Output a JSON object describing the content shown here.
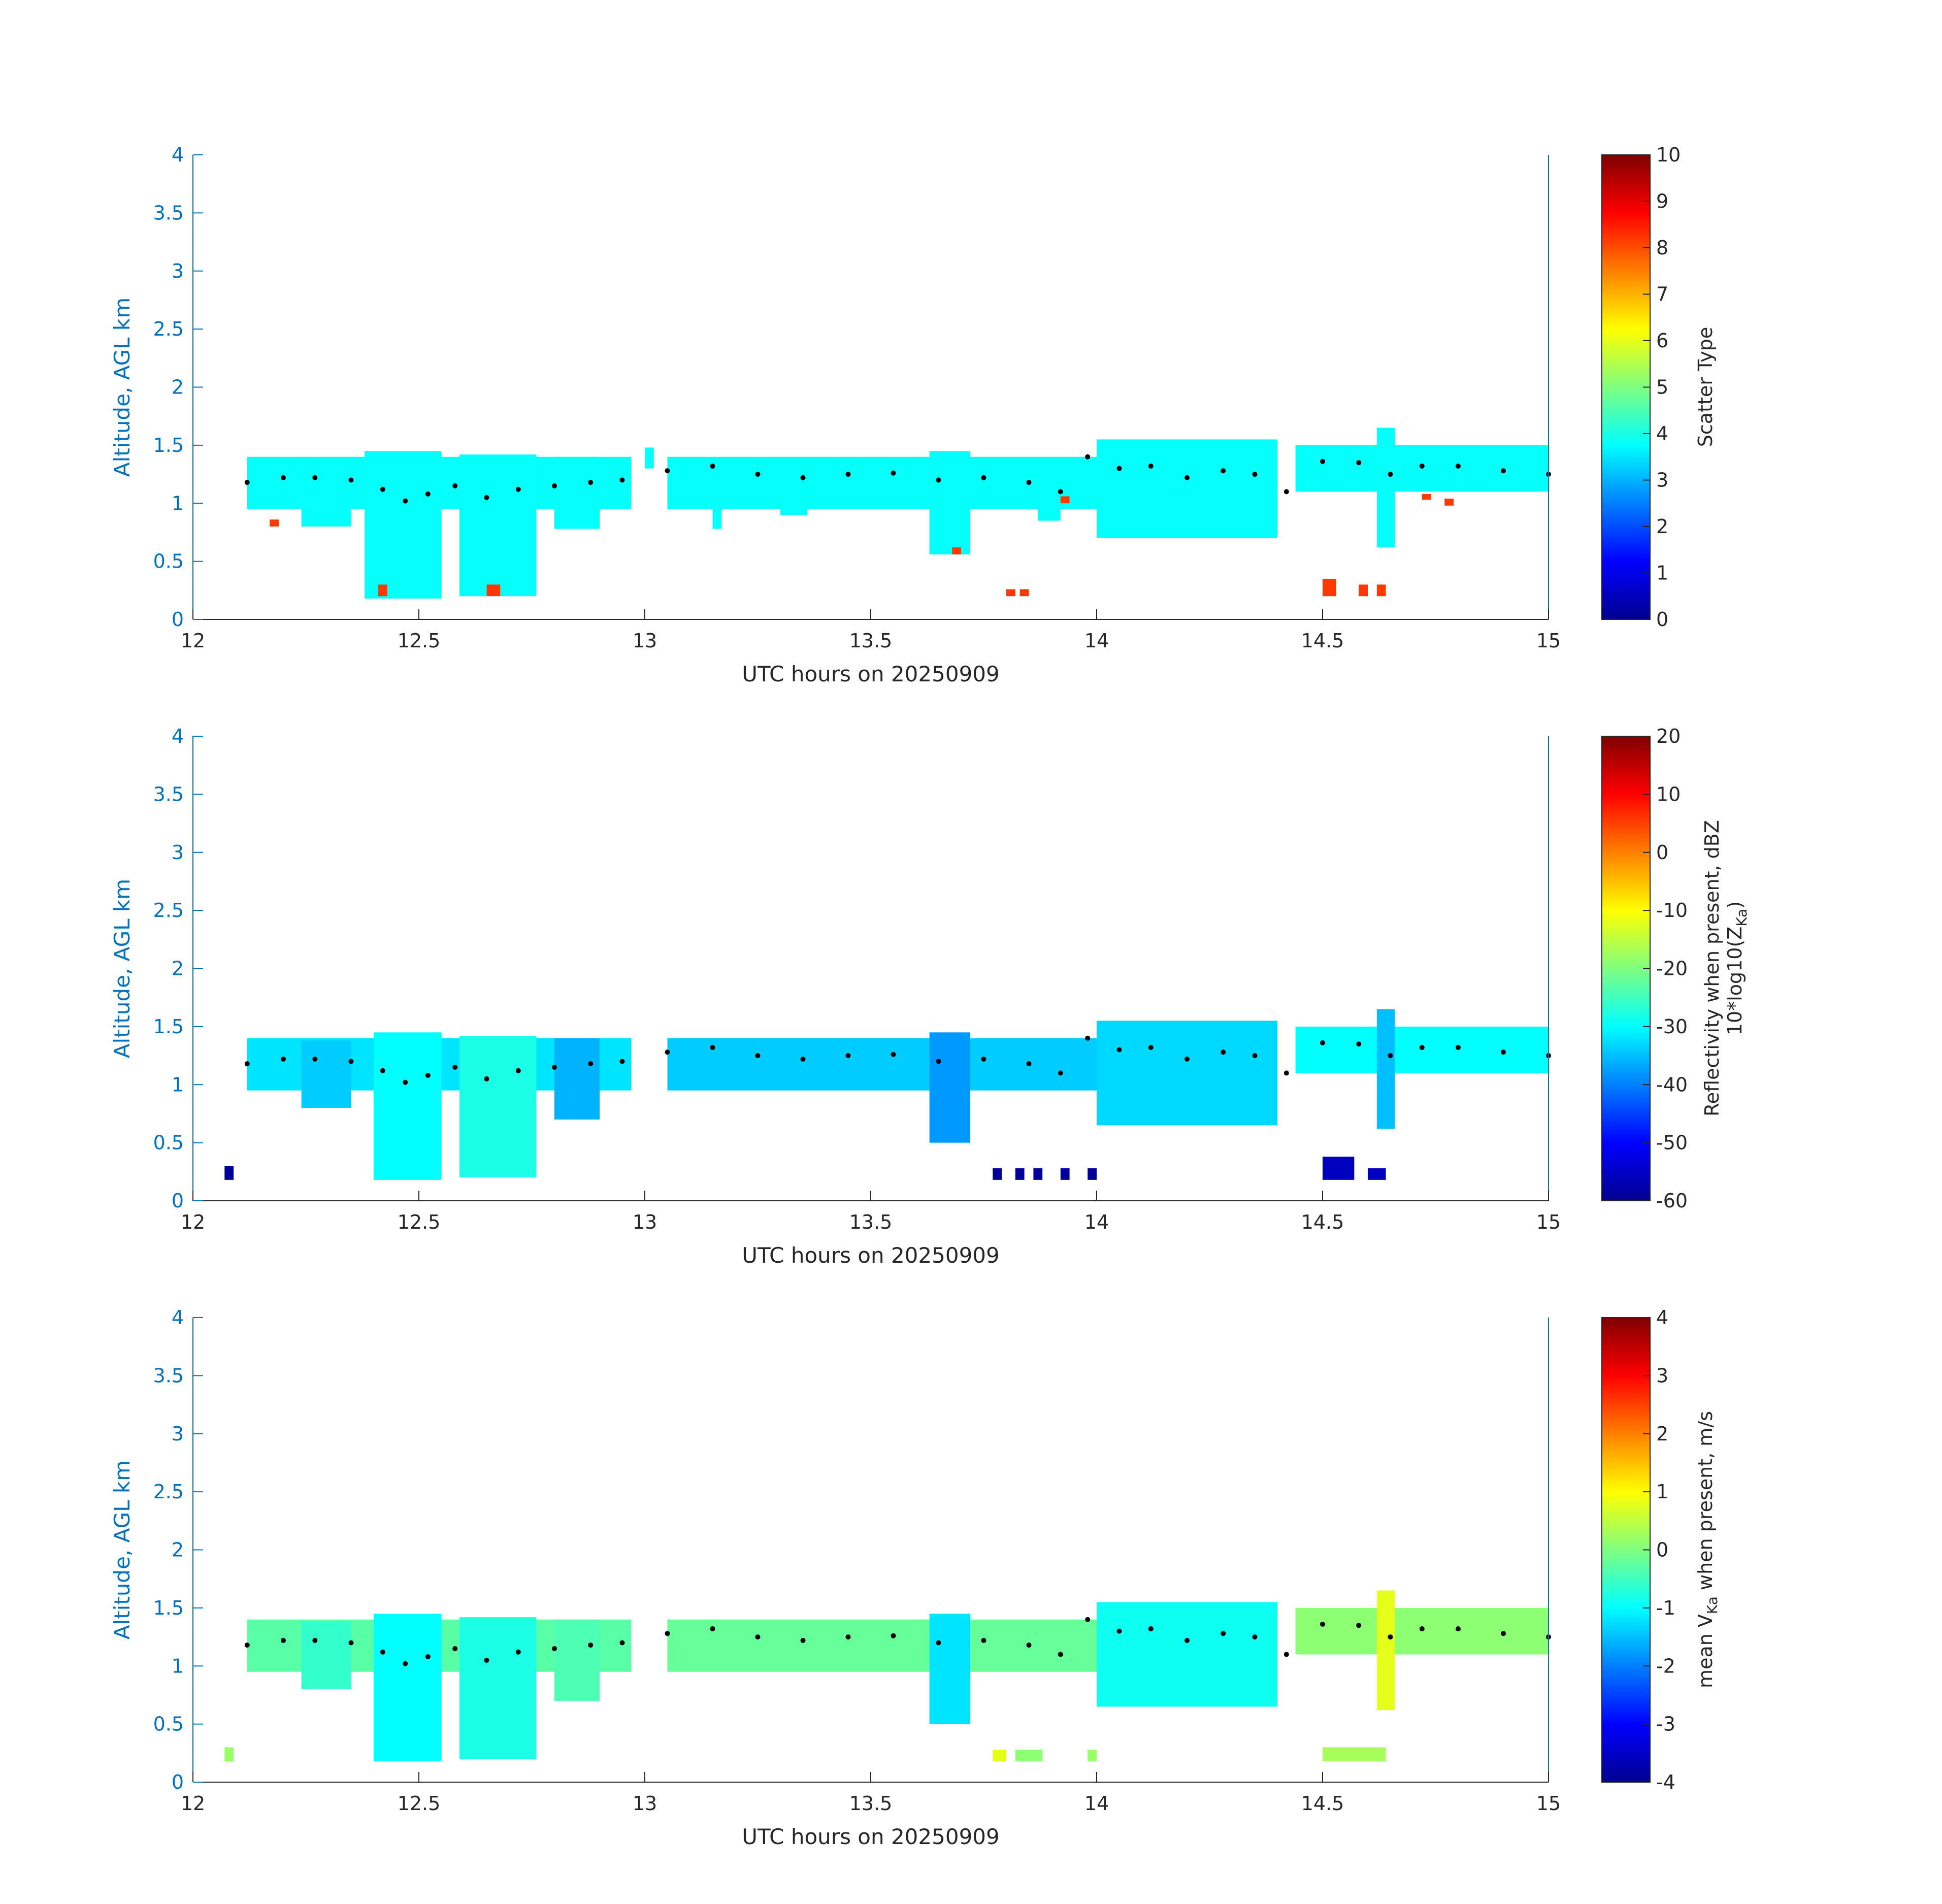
{
  "colors": {
    "axis_blue": "#0072bd",
    "axis_dark": "#262626",
    "colormap": "jet",
    "top_marker": "#000000"
  },
  "chart_data": [
    {
      "type": "heatmap",
      "title": "",
      "xlabel": "UTC hours on 20250909",
      "ylabel": "Altitude, AGL km",
      "xlim": [
        12,
        15
      ],
      "ylim": [
        0,
        4
      ],
      "xticks": [
        "12",
        "12.5",
        "13",
        "13.5",
        "14",
        "14.5",
        "15"
      ],
      "yticks": [
        "0",
        "0.5",
        "1",
        "1.5",
        "2",
        "2.5",
        "3",
        "3.5",
        "4"
      ],
      "colorbar": {
        "label": "Scatter Type",
        "label2": "",
        "clim": [
          0,
          10
        ],
        "ticks": [
          "0",
          "1",
          "2",
          "3",
          "4",
          "5",
          "6",
          "7",
          "8",
          "9",
          "10"
        ]
      },
      "cloud_top_km": "series_top",
      "cells": [
        {
          "t0": 12.12,
          "t1": 12.97,
          "zmin": 0.95,
          "zmax": 1.4,
          "v": 3.8
        },
        {
          "t0": 12.24,
          "t1": 12.35,
          "zmin": 0.8,
          "zmax": 1.38,
          "v": 3.8
        },
        {
          "t0": 12.38,
          "t1": 12.55,
          "zmin": 0.18,
          "zmax": 1.45,
          "v": 3.8
        },
        {
          "t0": 12.59,
          "t1": 12.76,
          "zmin": 0.2,
          "zmax": 1.42,
          "v": 3.8
        },
        {
          "t0": 12.8,
          "t1": 12.9,
          "zmin": 0.78,
          "zmax": 1.4,
          "v": 3.8
        },
        {
          "t0": 13.0,
          "t1": 13.02,
          "zmin": 1.3,
          "zmax": 1.48,
          "v": 3.8
        },
        {
          "t0": 13.05,
          "t1": 14.0,
          "zmin": 0.95,
          "zmax": 1.4,
          "v": 3.8
        },
        {
          "t0": 13.15,
          "t1": 13.17,
          "zmin": 0.78,
          "zmax": 1.0,
          "v": 3.8
        },
        {
          "t0": 13.3,
          "t1": 13.36,
          "zmin": 0.9,
          "zmax": 1.3,
          "v": 3.8
        },
        {
          "t0": 13.63,
          "t1": 13.72,
          "zmin": 0.56,
          "zmax": 1.45,
          "v": 3.8
        },
        {
          "t0": 13.87,
          "t1": 13.92,
          "zmin": 0.85,
          "zmax": 1.2,
          "v": 3.8
        },
        {
          "t0": 14.0,
          "t1": 14.4,
          "zmin": 0.7,
          "zmax": 1.55,
          "v": 3.8
        },
        {
          "t0": 14.44,
          "t1": 15.0,
          "zmin": 1.1,
          "zmax": 1.5,
          "v": 3.8
        },
        {
          "t0": 14.62,
          "t1": 14.66,
          "zmin": 0.62,
          "zmax": 1.65,
          "v": 3.8
        },
        {
          "t0": 12.17,
          "t1": 12.19,
          "zmin": 0.8,
          "zmax": 0.86,
          "v": 8.2
        },
        {
          "t0": 12.41,
          "t1": 12.43,
          "zmin": 0.2,
          "zmax": 0.3,
          "v": 8.2
        },
        {
          "t0": 12.65,
          "t1": 12.68,
          "zmin": 0.2,
          "zmax": 0.3,
          "v": 8.2
        },
        {
          "t0": 13.68,
          "t1": 13.7,
          "zmin": 0.56,
          "zmax": 0.62,
          "v": 8.2
        },
        {
          "t0": 13.8,
          "t1": 13.82,
          "zmin": 0.2,
          "zmax": 0.26,
          "v": 8.2
        },
        {
          "t0": 13.83,
          "t1": 13.85,
          "zmin": 0.2,
          "zmax": 0.26,
          "v": 8.2
        },
        {
          "t0": 13.92,
          "t1": 13.94,
          "zmin": 1.0,
          "zmax": 1.06,
          "v": 8.2
        },
        {
          "t0": 14.5,
          "t1": 14.53,
          "zmin": 0.2,
          "zmax": 0.35,
          "v": 8.2
        },
        {
          "t0": 14.58,
          "t1": 14.6,
          "zmin": 0.2,
          "zmax": 0.3,
          "v": 8.2
        },
        {
          "t0": 14.62,
          "t1": 14.64,
          "zmin": 0.2,
          "zmax": 0.3,
          "v": 8.2
        },
        {
          "t0": 14.72,
          "t1": 14.74,
          "zmin": 1.03,
          "zmax": 1.08,
          "v": 8.2
        },
        {
          "t0": 14.77,
          "t1": 14.79,
          "zmin": 0.98,
          "zmax": 1.04,
          "v": 8.2
        }
      ]
    },
    {
      "type": "heatmap",
      "title": "",
      "xlabel": "UTC hours on 20250909",
      "ylabel": "Altitude, AGL km",
      "xlim": [
        12,
        15
      ],
      "ylim": [
        0,
        4
      ],
      "xticks": [
        "12",
        "12.5",
        "13",
        "13.5",
        "14",
        "14.5",
        "15"
      ],
      "yticks": [
        "0",
        "0.5",
        "1",
        "1.5",
        "2",
        "2.5",
        "3",
        "3.5",
        "4"
      ],
      "colorbar": {
        "label": "Reflectivity when present, dBZ",
        "label2": "10*log10(Z",
        "label2_sub": "Ka",
        "label2_end": ")",
        "clim": [
          -60,
          20
        ],
        "ticks": [
          "-60",
          "-50",
          "-40",
          "-30",
          "-20",
          "-10",
          "0",
          "10",
          "20"
        ]
      },
      "cloud_top_km": "series_top",
      "cells": [
        {
          "t0": 12.12,
          "t1": 12.97,
          "zmin": 0.95,
          "zmax": 1.4,
          "v": -32
        },
        {
          "t0": 12.4,
          "t1": 12.55,
          "zmin": 0.18,
          "zmax": 1.45,
          "v": -30
        },
        {
          "t0": 12.59,
          "t1": 12.76,
          "zmin": 0.2,
          "zmax": 1.42,
          "v": -28
        },
        {
          "t0": 12.24,
          "t1": 12.35,
          "zmin": 0.8,
          "zmax": 1.38,
          "v": -34
        },
        {
          "t0": 12.8,
          "t1": 12.9,
          "zmin": 0.7,
          "zmax": 1.4,
          "v": -36
        },
        {
          "t0": 13.05,
          "t1": 14.0,
          "zmin": 0.95,
          "zmax": 1.4,
          "v": -34
        },
        {
          "t0": 13.63,
          "t1": 13.72,
          "zmin": 0.5,
          "zmax": 1.45,
          "v": -38
        },
        {
          "t0": 14.0,
          "t1": 14.4,
          "zmin": 0.65,
          "zmax": 1.55,
          "v": -33
        },
        {
          "t0": 14.44,
          "t1": 15.0,
          "zmin": 1.1,
          "zmax": 1.5,
          "v": -30
        },
        {
          "t0": 14.62,
          "t1": 14.66,
          "zmin": 0.62,
          "zmax": 1.65,
          "v": -35
        },
        {
          "t0": 12.07,
          "t1": 12.09,
          "zmin": 0.18,
          "zmax": 0.3,
          "v": -58
        },
        {
          "t0": 13.77,
          "t1": 13.79,
          "zmin": 0.18,
          "zmax": 0.28,
          "v": -58
        },
        {
          "t0": 13.82,
          "t1": 13.84,
          "zmin": 0.18,
          "zmax": 0.28,
          "v": -58
        },
        {
          "t0": 13.86,
          "t1": 13.88,
          "zmin": 0.18,
          "zmax": 0.28,
          "v": -58
        },
        {
          "t0": 13.92,
          "t1": 13.94,
          "zmin": 0.18,
          "zmax": 0.28,
          "v": -58
        },
        {
          "t0": 13.98,
          "t1": 14.0,
          "zmin": 0.18,
          "zmax": 0.28,
          "v": -58
        },
        {
          "t0": 14.5,
          "t1": 14.57,
          "zmin": 0.18,
          "zmax": 0.38,
          "v": -55
        },
        {
          "t0": 14.6,
          "t1": 14.64,
          "zmin": 0.18,
          "zmax": 0.28,
          "v": -55
        }
      ]
    },
    {
      "type": "heatmap",
      "title": "",
      "xlabel": "UTC hours on 20250909",
      "ylabel": "Altitude, AGL km",
      "xlim": [
        12,
        15
      ],
      "ylim": [
        0,
        4
      ],
      "xticks": [
        "12",
        "12.5",
        "13",
        "13.5",
        "14",
        "14.5",
        "15"
      ],
      "yticks": [
        "0",
        "0.5",
        "1",
        "1.5",
        "2",
        "2.5",
        "3",
        "3.5",
        "4"
      ],
      "colorbar": {
        "label": "mean V",
        "label_sub": "Ka",
        "label_end": " when present, m/s",
        "clim": [
          -4,
          4
        ],
        "ticks": [
          "-4",
          "-3",
          "-2",
          "-1",
          "0",
          "1",
          "2",
          "3",
          "4"
        ]
      },
      "cloud_top_km": "series_top",
      "cells": [
        {
          "t0": 12.12,
          "t1": 12.97,
          "zmin": 0.95,
          "zmax": 1.4,
          "v": -0.3
        },
        {
          "t0": 12.4,
          "t1": 12.55,
          "zmin": 0.18,
          "zmax": 1.45,
          "v": -1.0
        },
        {
          "t0": 12.59,
          "t1": 12.76,
          "zmin": 0.2,
          "zmax": 1.42,
          "v": -0.8
        },
        {
          "t0": 12.24,
          "t1": 12.35,
          "zmin": 0.8,
          "zmax": 1.38,
          "v": -0.6
        },
        {
          "t0": 12.8,
          "t1": 12.9,
          "zmin": 0.7,
          "zmax": 1.4,
          "v": -0.4
        },
        {
          "t0": 13.05,
          "t1": 14.0,
          "zmin": 0.95,
          "zmax": 1.4,
          "v": -0.2
        },
        {
          "t0": 13.63,
          "t1": 13.72,
          "zmin": 0.5,
          "zmax": 1.45,
          "v": -1.2
        },
        {
          "t0": 14.0,
          "t1": 14.4,
          "zmin": 0.65,
          "zmax": 1.55,
          "v": -0.9
        },
        {
          "t0": 14.44,
          "t1": 15.0,
          "zmin": 1.1,
          "zmax": 1.5,
          "v": 0.1
        },
        {
          "t0": 14.62,
          "t1": 14.66,
          "zmin": 0.62,
          "zmax": 1.65,
          "v": 0.8
        },
        {
          "t0": 12.07,
          "t1": 12.09,
          "zmin": 0.18,
          "zmax": 0.3,
          "v": 0.2
        },
        {
          "t0": 13.77,
          "t1": 13.8,
          "zmin": 0.18,
          "zmax": 0.28,
          "v": 0.8
        },
        {
          "t0": 13.82,
          "t1": 13.88,
          "zmin": 0.18,
          "zmax": 0.28,
          "v": 0.1
        },
        {
          "t0": 13.98,
          "t1": 14.0,
          "zmin": 0.18,
          "zmax": 0.28,
          "v": 0.2
        },
        {
          "t0": 14.5,
          "t1": 14.64,
          "zmin": 0.18,
          "zmax": 0.3,
          "v": 0.3
        }
      ]
    }
  ],
  "series_top": {
    "t": [
      12.12,
      12.2,
      12.27,
      12.35,
      12.42,
      12.47,
      12.52,
      12.58,
      12.65,
      12.72,
      12.8,
      12.88,
      12.95,
      13.05,
      13.15,
      13.25,
      13.35,
      13.45,
      13.55,
      13.65,
      13.75,
      13.85,
      13.92,
      13.98,
      14.05,
      14.12,
      14.2,
      14.28,
      14.35,
      14.42,
      14.5,
      14.58,
      14.65,
      14.72,
      14.8,
      14.9,
      15.0
    ],
    "z": [
      1.18,
      1.22,
      1.22,
      1.2,
      1.12,
      1.02,
      1.08,
      1.15,
      1.05,
      1.12,
      1.15,
      1.18,
      1.2,
      1.28,
      1.32,
      1.25,
      1.22,
      1.25,
      1.26,
      1.2,
      1.22,
      1.18,
      1.1,
      1.4,
      1.3,
      1.32,
      1.22,
      1.28,
      1.25,
      1.1,
      1.36,
      1.35,
      1.25,
      1.32,
      1.32,
      1.28,
      1.25
    ]
  }
}
